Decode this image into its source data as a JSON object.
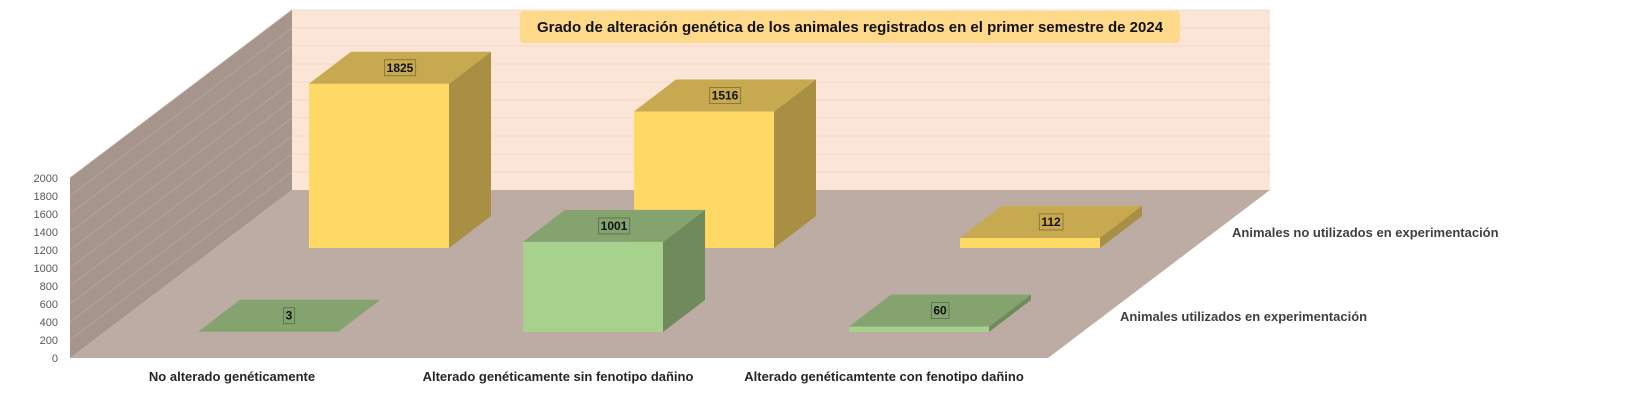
{
  "chart_data": {
    "type": "bar",
    "title": "Grado de alteración genética de los animales registrados en el primer semestre de 2024",
    "categories": [
      "No alterado genéticamente",
      "Alterado genéticamente sin fenotipo dañino",
      "Alterado genéticamtente con fenotipo dañino"
    ],
    "series": [
      {
        "name": "Animales utilizados en experimentación",
        "values": [
          3,
          1001,
          60
        ],
        "color": "#a9d18e"
      },
      {
        "name": "Animales no utilizados en experimentación",
        "values": [
          1825,
          1516,
          112
        ],
        "color": "#ffd966"
      }
    ],
    "y_ticks": [
      "0",
      "200",
      "400",
      "600",
      "800",
      "1000",
      "1200",
      "1400",
      "1600",
      "1800",
      "2000"
    ],
    "ylim": [
      0,
      2000
    ],
    "grid": true,
    "legend": "right",
    "colors": {
      "back_wall": "#fbe5d6",
      "side_wall": "#a6958c",
      "floor": "#bdaca3",
      "title_box": "#ffd98a"
    }
  }
}
